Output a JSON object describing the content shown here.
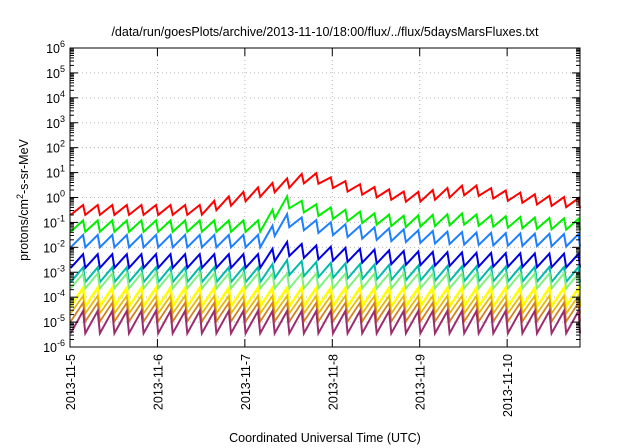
{
  "chart_data": {
    "type": "line",
    "title": "/data/run/goesPlots/archive/2013-11-10/18:00/flux/../flux/5daysMarsFluxes.txt",
    "xlabel": "Coordinated Universal Time (UTC)",
    "ylabel": "protons/cm²-s-sr-MeV",
    "ylabel_parts": {
      "pre": "protons/cm",
      "sup": "2",
      "post": "-s-sr-MeV"
    },
    "y_scale": "log",
    "ylim": [
      1e-06,
      1000000.0
    ],
    "y_ticks": [
      {
        "base": "10",
        "exp": "-6"
      },
      {
        "base": "10",
        "exp": "-5"
      },
      {
        "base": "10",
        "exp": "-4"
      },
      {
        "base": "10",
        "exp": "-3"
      },
      {
        "base": "10",
        "exp": "-2"
      },
      {
        "base": "10",
        "exp": "-1"
      },
      {
        "base": "10",
        "exp": "0"
      },
      {
        "base": "10",
        "exp": "1"
      },
      {
        "base": "10",
        "exp": "2"
      },
      {
        "base": "10",
        "exp": "3"
      },
      {
        "base": "10",
        "exp": "4"
      },
      {
        "base": "10",
        "exp": "5"
      },
      {
        "base": "10",
        "exp": "6"
      }
    ],
    "xlim": [
      "2013-11-05",
      "2013-11-10T20:00"
    ],
    "x_ticks": [
      "2013-11-5",
      "2013-11-6",
      "2013-11-7",
      "2013-11-8",
      "2013-11-9",
      "2013-11-10"
    ],
    "x_tick_rotation": "vertical",
    "grid": true,
    "legend": "none",
    "teeth_per_day": 6,
    "series": [
      {
        "color": "#ff0000",
        "baseline_log": -0.5,
        "amplitude": 0.4,
        "width": 2.0,
        "events": [
          {
            "peak": "2013-11-07T18:00",
            "height": 1.35,
            "rise_hours": 30,
            "decay_hours": 28
          },
          {
            "peak": "2013-11-09T14:00",
            "height": 0.55,
            "rise_hours": 16,
            "decay_hours": 26
          }
        ]
      },
      {
        "color": "#00ee00",
        "baseline_log": -1.15,
        "amplitude": 0.45,
        "width": 2.0,
        "events": [
          {
            "peak": "2013-11-07T11:00",
            "height": 1.0,
            "rise_hours": 6,
            "decay_hours": 20
          },
          {
            "peak": "2013-11-09T12:00",
            "height": 0.2,
            "rise_hours": 16,
            "decay_hours": 24
          }
        ]
      },
      {
        "color": "#1e7fff",
        "baseline_log": -1.75,
        "amplitude": 0.5,
        "width": 2.0,
        "events": [
          {
            "peak": "2013-11-07T11:00",
            "height": 0.85,
            "rise_hours": 6,
            "decay_hours": 24
          }
        ]
      },
      {
        "color": "#0000e0",
        "baseline_log": -2.55,
        "amplitude": 0.55,
        "width": 2.0,
        "events": [
          {
            "peak": "2013-11-07T11:00",
            "height": 0.5,
            "rise_hours": 6,
            "decay_hours": 24
          }
        ]
      },
      {
        "color": "#00bbaa",
        "baseline_log": -3.1,
        "amplitude": 0.6,
        "width": 2.0,
        "events": [
          {
            "peak": "2013-11-07T11:00",
            "height": 0.3,
            "rise_hours": 6,
            "decay_hours": 24
          }
        ]
      },
      {
        "color": "#80f080",
        "baseline_log": -3.35,
        "amplitude": 0.6,
        "width": 2.0,
        "events": []
      },
      {
        "color": "#ffff00",
        "baseline_log": -4.0,
        "amplitude": 0.75,
        "width": 2.5,
        "events": []
      },
      {
        "color": "#e6b800",
        "baseline_log": -4.3,
        "amplitude": 0.7,
        "width": 1.8,
        "events": []
      },
      {
        "color": "#d08020",
        "baseline_log": -4.6,
        "amplitude": 0.75,
        "width": 1.8,
        "events": []
      },
      {
        "color": "#9b2d6f",
        "baseline_log": -5.0,
        "amplitude": 0.9,
        "width": 2.0,
        "events": []
      }
    ]
  }
}
